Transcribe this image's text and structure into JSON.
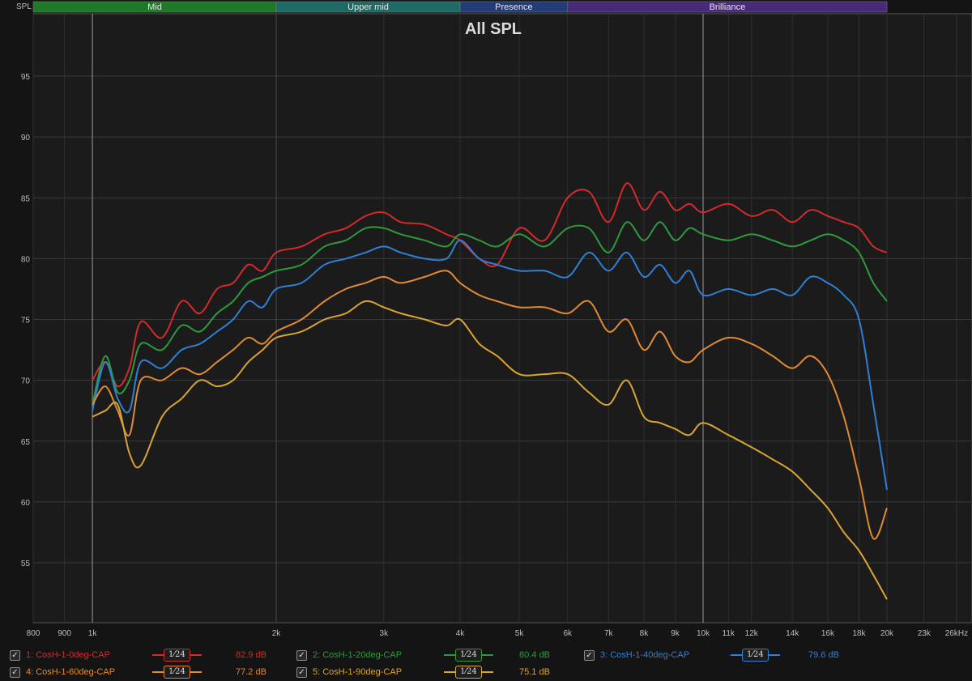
{
  "y_axis_label": "SPL",
  "bands": [
    {
      "label": "Mid",
      "from": 800,
      "to": 2000,
      "color": "#1f7a28"
    },
    {
      "label": "Upper mid",
      "from": 2000,
      "to": 4000,
      "color": "#1e6b66"
    },
    {
      "label": "Presence",
      "from": 4000,
      "to": 6000,
      "color": "#233c78"
    },
    {
      "label": "Brilliance",
      "from": 6000,
      "to": 20000,
      "color": "#4a2a78"
    }
  ],
  "chart_data": {
    "type": "line",
    "title": "All SPL",
    "xscale": "log",
    "xlim": [
      800,
      26000
    ],
    "ylim": [
      50,
      98
    ],
    "x_ticks": [
      {
        "v": 800,
        "t": "800"
      },
      {
        "v": 900,
        "t": "900"
      },
      {
        "v": 1000,
        "t": "1k"
      },
      {
        "v": 2000,
        "t": "2k"
      },
      {
        "v": 3000,
        "t": "3k"
      },
      {
        "v": 4000,
        "t": "4k"
      },
      {
        "v": 5000,
        "t": "5k"
      },
      {
        "v": 6000,
        "t": "6k"
      },
      {
        "v": 7000,
        "t": "7k"
      },
      {
        "v": 8000,
        "t": "8k"
      },
      {
        "v": 9000,
        "t": "9k"
      },
      {
        "v": 10000,
        "t": "10k"
      },
      {
        "v": 11000,
        "t": "11k"
      },
      {
        "v": 12000,
        "t": "12k"
      },
      {
        "v": 14000,
        "t": "14k"
      },
      {
        "v": 16000,
        "t": "16k"
      },
      {
        "v": 18000,
        "t": "18k"
      },
      {
        "v": 20000,
        "t": "20k"
      },
      {
        "v": 23000,
        "t": "23k"
      },
      {
        "v": 26000,
        "t": "26kHz"
      }
    ],
    "y_ticks": [
      55,
      60,
      65,
      70,
      75,
      80,
      85,
      90,
      95
    ],
    "series": [
      {
        "name": "1: CosH-1-0deg-CAP",
        "color": "#d42a2a",
        "level": "82.9 dB",
        "x": [
          1000,
          1050,
          1100,
          1150,
          1200,
          1300,
          1400,
          1500,
          1600,
          1700,
          1800,
          1900,
          2000,
          2200,
          2400,
          2600,
          2800,
          3000,
          3200,
          3500,
          3800,
          4000,
          4300,
          4600,
          5000,
          5500,
          6000,
          6500,
          7000,
          7500,
          8000,
          8500,
          9000,
          9500,
          10000,
          11000,
          12000,
          13000,
          14000,
          15000,
          16000,
          17000,
          18000,
          19000,
          20000
        ],
        "y": [
          70.0,
          71.5,
          69.5,
          71.0,
          74.8,
          73.5,
          76.5,
          75.5,
          77.5,
          78.0,
          79.5,
          79.0,
          80.5,
          81.0,
          82.0,
          82.5,
          83.5,
          83.8,
          83.0,
          82.8,
          82.0,
          81.5,
          80.0,
          79.5,
          82.5,
          81.5,
          85.0,
          85.5,
          83.0,
          86.2,
          84.0,
          85.5,
          84.0,
          84.5,
          83.8,
          84.5,
          83.5,
          84.0,
          83.0,
          84.0,
          83.5,
          83.0,
          82.5,
          81.0,
          80.5
        ]
      },
      {
        "name": "2: CosH-1-20deg-CAP",
        "color": "#2e9a3c",
        "level": "80.4 dB",
        "x": [
          1000,
          1050,
          1100,
          1150,
          1200,
          1300,
          1400,
          1500,
          1600,
          1700,
          1800,
          1900,
          2000,
          2200,
          2400,
          2600,
          2800,
          3000,
          3200,
          3500,
          3800,
          4000,
          4300,
          4600,
          5000,
          5500,
          6000,
          6500,
          7000,
          7500,
          8000,
          8500,
          9000,
          9500,
          10000,
          11000,
          12000,
          13000,
          14000,
          15000,
          16000,
          17000,
          18000,
          19000,
          20000
        ],
        "y": [
          68.0,
          72.0,
          69.0,
          70.0,
          73.0,
          72.5,
          74.5,
          74.0,
          75.5,
          76.5,
          78.0,
          78.5,
          79.0,
          79.5,
          81.0,
          81.5,
          82.5,
          82.5,
          82.0,
          81.5,
          81.0,
          82.0,
          81.5,
          81.0,
          82.0,
          81.0,
          82.5,
          82.5,
          80.5,
          83.0,
          81.5,
          83.0,
          81.5,
          82.5,
          82.0,
          81.5,
          82.0,
          81.5,
          81.0,
          81.5,
          82.0,
          81.5,
          80.5,
          78.0,
          76.5
        ]
      },
      {
        "name": "3: CosH-1-40deg-CAP",
        "color": "#2f7fd6",
        "level": "79.6 dB",
        "x": [
          1000,
          1050,
          1100,
          1150,
          1200,
          1300,
          1400,
          1500,
          1600,
          1700,
          1800,
          1900,
          2000,
          2200,
          2400,
          2600,
          2800,
          3000,
          3200,
          3500,
          3800,
          4000,
          4300,
          4600,
          5000,
          5500,
          6000,
          6500,
          7000,
          7500,
          8000,
          8500,
          9000,
          9500,
          10000,
          11000,
          12000,
          13000,
          14000,
          15000,
          16000,
          17000,
          18000,
          19000,
          20000
        ],
        "y": [
          67.5,
          71.5,
          68.5,
          67.5,
          71.5,
          71.0,
          72.5,
          73.0,
          74.0,
          75.0,
          76.5,
          76.0,
          77.5,
          78.0,
          79.5,
          80.0,
          80.5,
          81.0,
          80.5,
          80.0,
          80.0,
          81.5,
          80.0,
          79.5,
          79.0,
          79.0,
          78.5,
          80.5,
          79.0,
          80.5,
          78.5,
          79.5,
          78.0,
          79.0,
          77.0,
          77.5,
          77.0,
          77.5,
          77.0,
          78.5,
          78.0,
          77.0,
          75.0,
          68.0,
          61.0
        ]
      },
      {
        "name": "4: CosH-1-60deg-CAP",
        "color": "#e08a35",
        "level": "77.2 dB",
        "x": [
          1000,
          1050,
          1100,
          1150,
          1200,
          1300,
          1400,
          1500,
          1600,
          1700,
          1800,
          1900,
          2000,
          2200,
          2400,
          2600,
          2800,
          3000,
          3200,
          3500,
          3800,
          4000,
          4300,
          4600,
          5000,
          5500,
          6000,
          6500,
          7000,
          7500,
          8000,
          8500,
          9000,
          9500,
          10000,
          11000,
          12000,
          13000,
          14000,
          15000,
          16000,
          17000,
          18000,
          19000,
          20000
        ],
        "y": [
          68.0,
          69.5,
          67.5,
          65.5,
          70.0,
          70.0,
          71.0,
          70.5,
          71.5,
          72.5,
          73.5,
          73.0,
          74.0,
          75.0,
          76.5,
          77.5,
          78.0,
          78.5,
          78.0,
          78.5,
          79.0,
          78.0,
          77.0,
          76.5,
          76.0,
          76.0,
          75.5,
          76.5,
          74.0,
          75.0,
          72.5,
          74.0,
          72.0,
          71.5,
          72.5,
          73.5,
          73.0,
          72.0,
          71.0,
          72.0,
          70.5,
          67.0,
          62.0,
          57.0,
          59.5
        ]
      },
      {
        "name": "5: CosH-1-90deg-CAP",
        "color": "#d9a532",
        "level": "75.1 dB",
        "x": [
          1000,
          1050,
          1100,
          1150,
          1200,
          1300,
          1400,
          1500,
          1600,
          1700,
          1800,
          1900,
          2000,
          2200,
          2400,
          2600,
          2800,
          3000,
          3200,
          3500,
          3800,
          4000,
          4300,
          4600,
          5000,
          5500,
          6000,
          6500,
          7000,
          7500,
          8000,
          8500,
          9000,
          9500,
          10000,
          11000,
          12000,
          13000,
          14000,
          15000,
          16000,
          17000,
          18000,
          19000,
          20000
        ],
        "y": [
          67.0,
          67.5,
          68.0,
          64.0,
          63.0,
          67.0,
          68.5,
          70.0,
          69.5,
          70.0,
          71.5,
          72.5,
          73.5,
          74.0,
          75.0,
          75.5,
          76.5,
          76.0,
          75.5,
          75.0,
          74.5,
          75.0,
          73.0,
          72.0,
          70.5,
          70.5,
          70.5,
          69.0,
          68.0,
          70.0,
          67.0,
          66.5,
          66.0,
          65.5,
          66.5,
          65.5,
          64.5,
          63.5,
          62.5,
          61.0,
          59.5,
          57.5,
          56.0,
          54.0,
          52.0
        ]
      }
    ]
  },
  "legend": [
    {
      "name": "1: CosH-1-0deg-CAP",
      "level": "82.9 dB",
      "color": "#d42a2a",
      "check": "✓",
      "smooth": "1⁄24"
    },
    {
      "name": "2: CosH-1-20deg-CAP",
      "level": "80.4 dB",
      "color": "#2e9a3c",
      "check": "✓",
      "smooth": "1⁄24"
    },
    {
      "name": "3: CosH-1-40deg-CAP",
      "level": "79.6 dB",
      "color": "#2f7fd6",
      "check": "✓",
      "smooth": "1⁄24"
    },
    {
      "name": "4: CosH-1-60deg-CAP",
      "level": "77.2 dB",
      "color": "#e08a35",
      "check": "✓",
      "smooth": "1⁄24"
    },
    {
      "name": "5: CosH-1-90deg-CAP",
      "level": "75.1 dB",
      "color": "#d9a532",
      "check": "✓",
      "smooth": "1⁄24"
    }
  ]
}
